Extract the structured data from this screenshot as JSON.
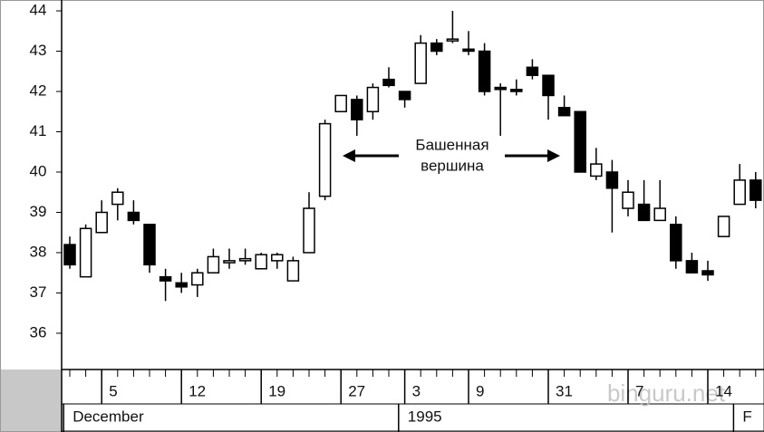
{
  "chart_data": {
    "type": "candlestick",
    "categories": [
      null,
      null,
      "5",
      null,
      null,
      null,
      null,
      "12",
      null,
      null,
      null,
      null,
      "19",
      null,
      null,
      null,
      null,
      "27",
      null,
      null,
      null,
      "3",
      null,
      null,
      null,
      "9",
      null,
      null,
      null,
      null,
      "31",
      null,
      null,
      null,
      null,
      "7",
      null,
      null,
      null,
      null,
      "14",
      null,
      null,
      null
    ],
    "months": [
      "December",
      null,
      null,
      null,
      null,
      null,
      null,
      null,
      null,
      null,
      null,
      null,
      null,
      null,
      null,
      null,
      null,
      null,
      null,
      null,
      null,
      "1995",
      null,
      null,
      null,
      null,
      null,
      null,
      null,
      null,
      null,
      null,
      null,
      null,
      null,
      null,
      null,
      null,
      null,
      null,
      null,
      null,
      "F",
      null
    ],
    "open": [
      38.2,
      37.4,
      38.5,
      39.2,
      39.0,
      38.7,
      37.4,
      37.25,
      37.2,
      37.5,
      37.75,
      37.8,
      37.6,
      37.8,
      37.3,
      38.0,
      39.4,
      41.5,
      41.8,
      41.5,
      42.3,
      42.0,
      42.2,
      43.2,
      43.3,
      43.05,
      43.0,
      42.1,
      42.05,
      42.6,
      42.4,
      41.6,
      41.5,
      39.9,
      40.0,
      39.1,
      39.2,
      38.8,
      38.7,
      37.8,
      37.55,
      38.4,
      39.2,
      39.8
    ],
    "high": [
      38.4,
      38.7,
      39.3,
      39.6,
      39.3,
      38.7,
      37.6,
      37.5,
      37.6,
      38.1,
      38.1,
      38.1,
      38.0,
      38.0,
      37.9,
      39.5,
      41.3,
      41.9,
      41.9,
      42.2,
      42.6,
      42.0,
      43.4,
      43.3,
      44.0,
      43.5,
      43.2,
      42.2,
      42.3,
      42.8,
      42.4,
      41.9,
      41.5,
      40.6,
      40.3,
      39.8,
      39.8,
      39.8,
      38.9,
      38.0,
      37.8,
      38.9,
      40.2,
      40.0
    ],
    "low": [
      37.6,
      37.4,
      38.5,
      38.8,
      38.7,
      37.5,
      36.8,
      37.0,
      36.9,
      37.5,
      37.6,
      37.7,
      37.6,
      37.6,
      37.3,
      38.0,
      39.3,
      41.5,
      40.9,
      41.3,
      42.1,
      41.6,
      42.2,
      42.9,
      43.2,
      42.9,
      41.9,
      40.9,
      41.9,
      42.3,
      41.3,
      41.4,
      40.0,
      39.8,
      38.5,
      38.9,
      38.8,
      38.8,
      37.6,
      37.5,
      37.3,
      38.4,
      39.2,
      39.1
    ],
    "close": [
      37.7,
      38.6,
      39.0,
      39.5,
      38.8,
      37.7,
      37.3,
      37.15,
      37.5,
      37.9,
      37.8,
      37.85,
      37.95,
      37.95,
      37.8,
      39.1,
      41.2,
      41.9,
      41.3,
      42.1,
      42.15,
      41.8,
      43.2,
      43.0,
      43.3,
      43.0,
      42.0,
      42.05,
      42.0,
      42.4,
      41.9,
      41.4,
      40.0,
      40.2,
      39.6,
      39.5,
      38.8,
      39.1,
      37.8,
      37.5,
      37.45,
      38.9,
      39.8,
      39.3
    ],
    "ylim": [
      35.1,
      44.27
    ],
    "yticks": [
      36,
      37,
      38,
      39,
      40,
      41,
      42,
      43,
      44
    ],
    "annotation": [
      "Башенная",
      "вершина"
    ],
    "watermark": "binguru.net",
    "up_color": "#ffffff",
    "down_color": "#000000"
  }
}
